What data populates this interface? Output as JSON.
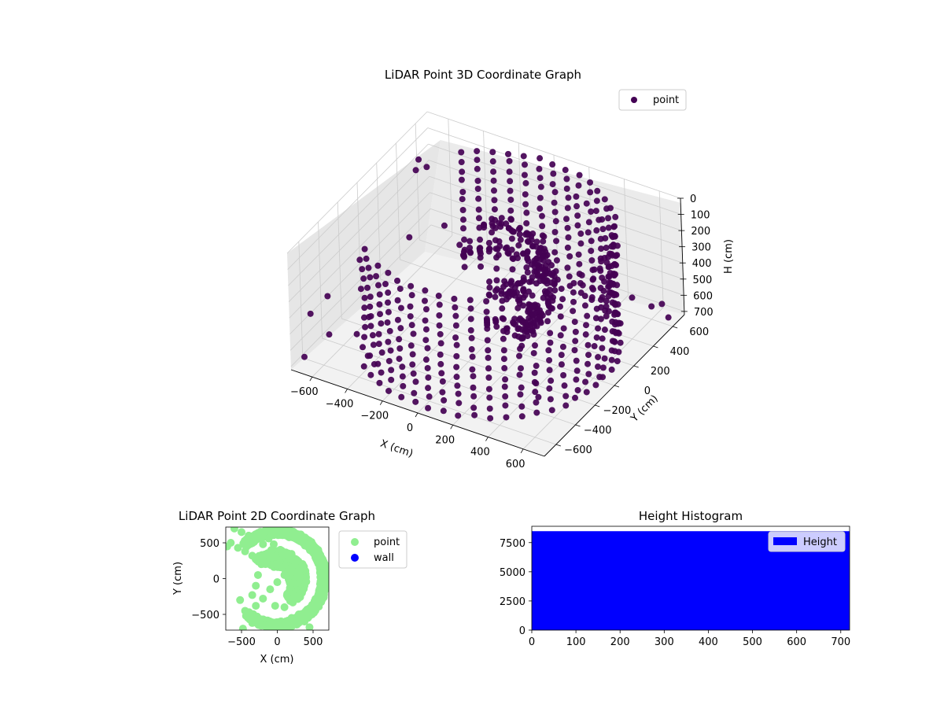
{
  "figure": {
    "background": "#ffffff"
  },
  "chart_data": [
    {
      "type": "scatter3d",
      "title": "LiDAR Point 3D Coordinate Graph",
      "xlabel": "X (cm)",
      "ylabel": "Y (cm)",
      "zlabel": "H (cm)",
      "xlim": [
        -720,
        720
      ],
      "ylim": [
        -720,
        720
      ],
      "zlim": [
        0,
        720
      ],
      "z_axis_inverted": true,
      "x_ticks": [
        -600,
        -400,
        -200,
        0,
        200,
        400,
        600
      ],
      "y_ticks": [
        -600,
        -400,
        -200,
        0,
        200,
        400,
        600
      ],
      "z_ticks": [
        0,
        100,
        200,
        300,
        400,
        500,
        600,
        700
      ],
      "grid": true,
      "legend_position": "upper-right",
      "series": [
        {
          "name": "point",
          "color": "#440154",
          "shape": "partial cylindrical shell around a vertical axis, open toward negative X and positive Y",
          "shell": {
            "radius": 650,
            "angle_from_deg": -130,
            "angle_to_deg": 135
          },
          "rings_h": [
            0,
            60,
            120,
            180,
            240,
            300,
            360,
            420,
            480,
            540,
            600,
            660,
            720
          ],
          "inner_bands": [
            {
              "radius": 330,
              "h": 380,
              "angle_from_deg": -60,
              "angle_to_deg": 140
            },
            {
              "radius": 300,
              "h": 200,
              "angle_from_deg": -40,
              "angle_to_deg": 120
            },
            {
              "radius": 240,
              "h": 560,
              "angle_from_deg": -20,
              "angle_to_deg": 120
            }
          ],
          "scattered_points": [
            {
              "x": -710,
              "y": -600,
              "h": 710
            },
            {
              "x": -690,
              "y": -560,
              "h": 460
            },
            {
              "x": -650,
              "y": -450,
              "h": 640
            },
            {
              "x": -600,
              "y": -540,
              "h": 330
            },
            {
              "x": -520,
              "y": -400,
              "h": 620
            },
            {
              "x": -470,
              "y": -360,
              "h": 520
            },
            {
              "x": 420,
              "y": -260,
              "h": 660
            },
            {
              "x": 460,
              "y": -310,
              "h": 700
            },
            {
              "x": 700,
              "y": 240,
              "h": 330
            },
            {
              "x": 700,
              "y": 430,
              "h": 500
            },
            {
              "x": 720,
              "y": 500,
              "h": 520
            },
            {
              "x": 720,
              "y": 560,
              "h": 640
            },
            {
              "x": -500,
              "y": 120,
              "h": 330
            },
            {
              "x": -400,
              "y": 300,
              "h": 330
            },
            {
              "x": -640,
              "y": 480,
              "h": 120
            },
            {
              "x": -600,
              "y": 380,
              "h": 110
            },
            {
              "x": -560,
              "y": 420,
              "h": 100
            }
          ]
        }
      ]
    },
    {
      "type": "scatter",
      "title": "LiDAR Point 2D Coordinate Graph",
      "xlabel": "X (cm)",
      "ylabel": "Y (cm)",
      "xlim": [
        -720,
        720
      ],
      "ylim": [
        -720,
        720
      ],
      "x_ticks": [
        -500,
        0,
        500
      ],
      "y_ticks": [
        -500,
        0,
        500
      ],
      "grid": false,
      "legend_position": "outside-right",
      "series": [
        {
          "name": "point",
          "color": "#90ee90",
          "shell": {
            "radius": 650,
            "angle_from_deg": -130,
            "angle_to_deg": 135
          },
          "inner_bands": [
            {
              "radius": 330,
              "angle_from_deg": -60,
              "angle_to_deg": 140
            },
            {
              "radius": 300,
              "angle_from_deg": -40,
              "angle_to_deg": 120
            },
            {
              "radius": 240,
              "angle_from_deg": -20,
              "angle_to_deg": 120
            }
          ],
          "points": [
            [
              -600,
              700
            ],
            [
              -500,
              650
            ],
            [
              -400,
              600
            ],
            [
              -700,
              450
            ],
            [
              -650,
              500
            ],
            [
              -550,
              430
            ],
            [
              -450,
              380
            ],
            [
              -350,
              320
            ],
            [
              -250,
              270
            ],
            [
              -150,
              220
            ],
            [
              -200,
              480
            ],
            [
              -200,
              300
            ],
            [
              -270,
              50
            ],
            [
              -300,
              -100
            ],
            [
              -350,
              -230
            ],
            [
              -520,
              -300
            ],
            [
              -450,
              -450
            ],
            [
              -400,
              -550
            ],
            [
              -480,
              -700
            ],
            [
              -350,
              -620
            ],
            [
              -250,
              -650
            ],
            [
              -150,
              -680
            ],
            [
              -300,
              -380
            ],
            [
              -200,
              -280
            ],
            [
              -100,
              -150
            ],
            [
              0,
              -50
            ],
            [
              100,
              50
            ],
            [
              200,
              150
            ],
            [
              -380,
              500
            ],
            [
              -300,
              580
            ],
            [
              -200,
              650
            ],
            [
              -100,
              700
            ],
            [
              0,
              720
            ],
            [
              -50,
              480
            ],
            [
              -120,
              560
            ],
            [
              450,
              -680
            ],
            [
              380,
              -600
            ],
            [
              300,
              -500
            ],
            [
              200,
              -550
            ],
            [
              50,
              -600
            ],
            [
              100,
              -400
            ],
            [
              -30,
              -380
            ],
            [
              200,
              -300
            ],
            [
              0,
              200
            ],
            [
              -100,
              300
            ]
          ]
        },
        {
          "name": "wall",
          "color": "#0000ff",
          "points": []
        }
      ]
    },
    {
      "type": "bar",
      "title": "Height Histogram",
      "xlabel": "",
      "ylabel": "",
      "xlim": [
        0,
        720
      ],
      "ylim": [
        0,
        8900
      ],
      "x_ticks": [
        0,
        100,
        200,
        300,
        400,
        500,
        600,
        700
      ],
      "y_ticks": [
        0,
        2500,
        5000,
        7500
      ],
      "grid": false,
      "legend_position": "upper-right",
      "series": [
        {
          "name": "Height",
          "color": "#0000ff",
          "bins": [
            0,
            720
          ],
          "values": [
            8480
          ]
        }
      ]
    }
  ]
}
